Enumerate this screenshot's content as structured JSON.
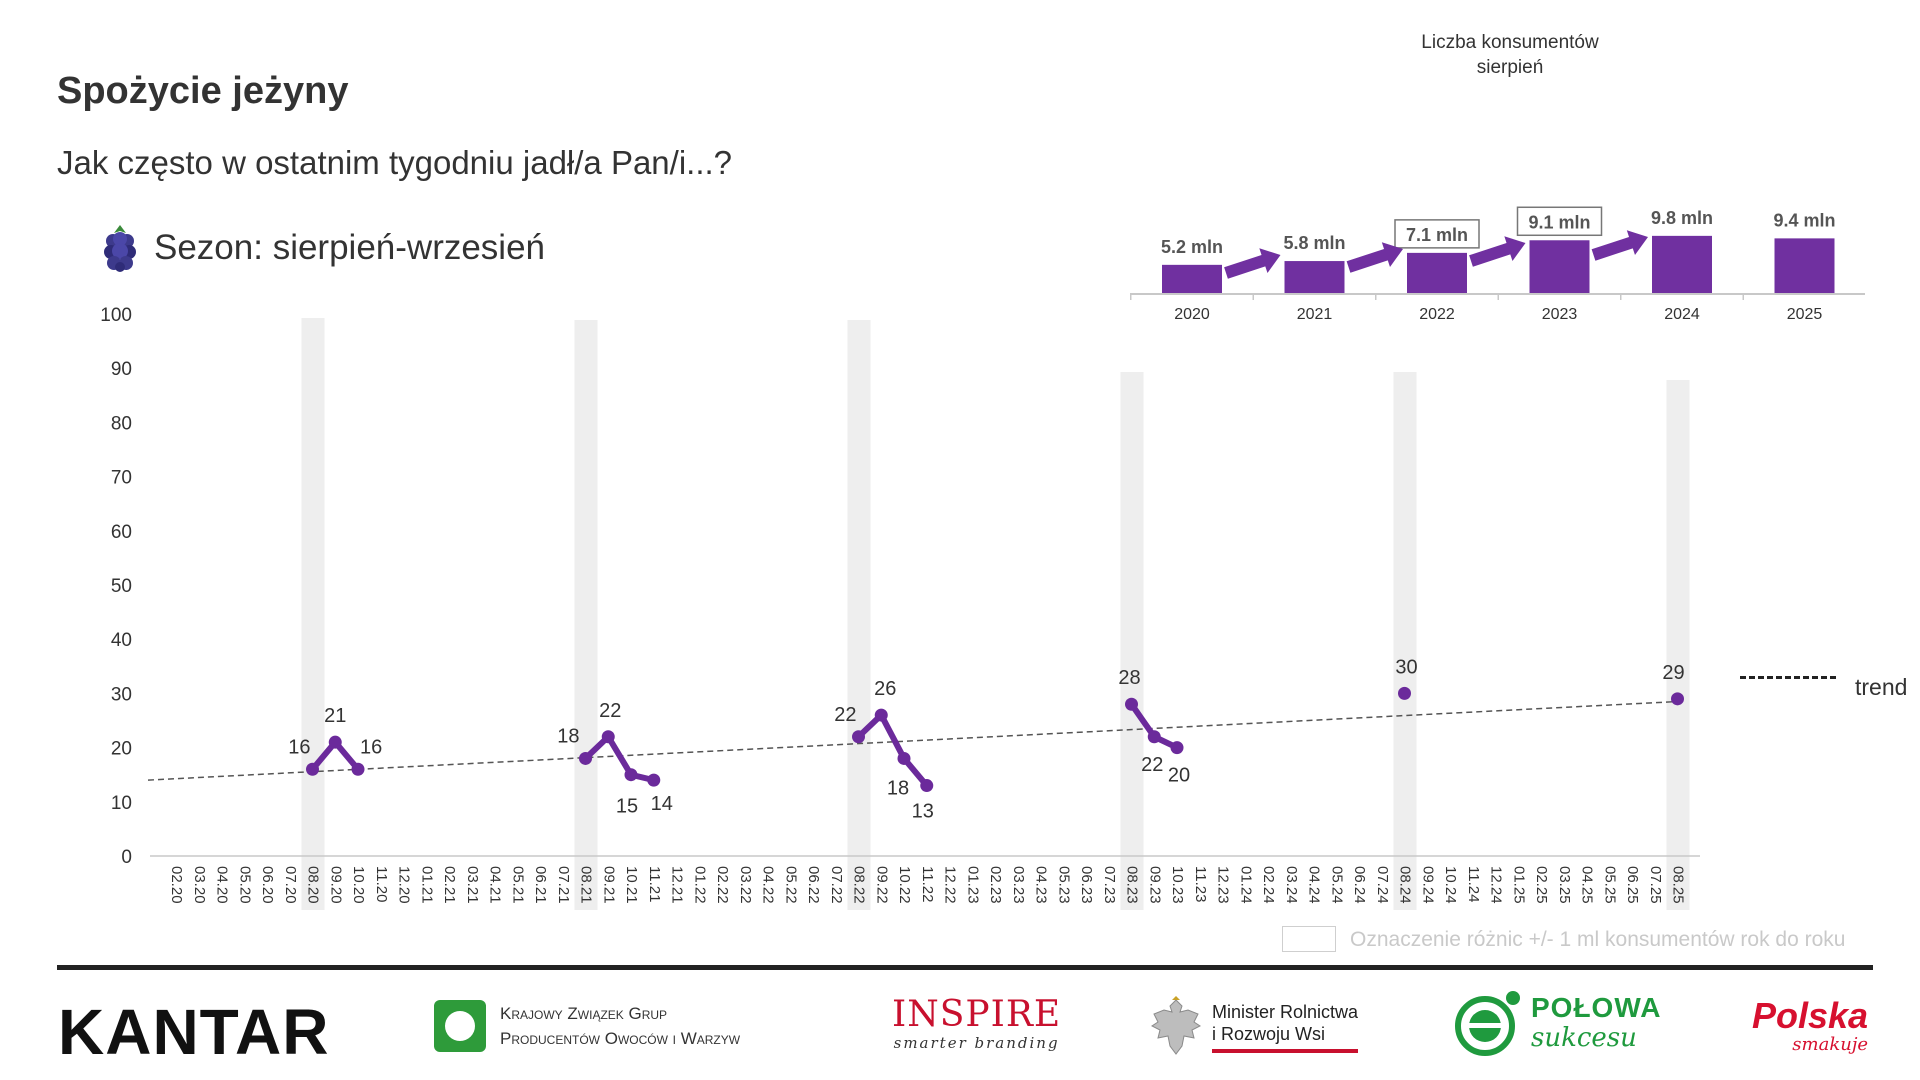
{
  "header": {
    "title": "Spożycie jeżyny",
    "subtitle": "Jak często w ostatnim tygodniu jadł/a Pan/i...?",
    "season": "Sezon: sierpień-wrzesień",
    "season_icon": "blackberry-icon"
  },
  "consumers": {
    "title_line1": "Liczba konsumentów",
    "title_line2": "sierpień"
  },
  "chart_data": [
    {
      "type": "line",
      "y_axis": {
        "min": 0,
        "max": 100,
        "ticks": [
          "0",
          "10",
          "20",
          "30",
          "40",
          "50",
          "60",
          "70",
          "80",
          "90",
          "100"
        ]
      },
      "x_axis": {
        "categories": [
          "02.20",
          "03.20",
          "04.20",
          "05.20",
          "06.20",
          "07.20",
          "08.20",
          "09.20",
          "10.20",
          "11.20",
          "12.20",
          "01.21",
          "02.21",
          "03.21",
          "04.21",
          "05.21",
          "06.21",
          "07.21",
          "08.21",
          "09.21",
          "10.21",
          "11.21",
          "12.21",
          "01.22",
          "02.22",
          "03.22",
          "04.22",
          "05.22",
          "06.22",
          "07.22",
          "08.22",
          "09.22",
          "10.22",
          "11.22",
          "12.22",
          "01.23",
          "02.23",
          "03.23",
          "04.23",
          "05.23",
          "06.23",
          "07.23",
          "08.23",
          "09.23",
          "10.23",
          "11.23",
          "12.23",
          "01.24",
          "02.24",
          "03.24",
          "04.24",
          "05.24",
          "06.24",
          "07.24",
          "08.24",
          "09.24",
          "10.24",
          "11.24",
          "12.24",
          "01.25",
          "02.25",
          "03.25",
          "04.25",
          "05.25",
          "06.25",
          "07.25",
          "08.25"
        ]
      },
      "highlighted_months": [
        "08.20",
        "08.21",
        "08.22",
        "08.23",
        "08.24",
        "08.25"
      ],
      "series": [
        {
          "values": [
            {
              "x": "08.20",
              "y": 16
            },
            {
              "x": "09.20",
              "y": 21
            },
            {
              "x": "10.20",
              "y": 16
            }
          ]
        },
        {
          "values": [
            {
              "x": "08.21",
              "y": 18
            },
            {
              "x": "09.21",
              "y": 22
            },
            {
              "x": "10.21",
              "y": 15
            },
            {
              "x": "11.21",
              "y": 14
            }
          ]
        },
        {
          "values": [
            {
              "x": "08.22",
              "y": 22
            },
            {
              "x": "09.22",
              "y": 26
            },
            {
              "x": "10.22",
              "y": 18
            },
            {
              "x": "11.22",
              "y": 13
            }
          ]
        },
        {
          "values": [
            {
              "x": "08.23",
              "y": 28
            },
            {
              "x": "09.23",
              "y": 22
            },
            {
              "x": "10.23",
              "y": 20
            }
          ]
        },
        {
          "values": [
            {
              "x": "08.24",
              "y": 30
            }
          ]
        },
        {
          "values": [
            {
              "x": "08.25",
              "y": 29
            }
          ]
        }
      ],
      "trend": {
        "label": "trend",
        "style": "dashed",
        "from": {
          "x": "02.20",
          "y": 14
        },
        "to": {
          "x": "08.25",
          "y": 28.5
        }
      },
      "legend": {
        "trend_label": "trend",
        "highlight_label": "Oznaczenie różnic +/- 1 ml konsumentów rok do roku"
      },
      "colors": {
        "series": "#6b2a9b",
        "highlight": "#eeeeee",
        "trend": "#555555"
      }
    },
    {
      "type": "bar",
      "categories": [
        "2020",
        "2021",
        "2022",
        "2023",
        "2024",
        "2025"
      ],
      "values": [
        5.2,
        5.8,
        7.1,
        9.1,
        9.8,
        9.4
      ],
      "labels": [
        "5.2 mln",
        "5.8 mln",
        "7.1 mln",
        "9.1 mln",
        "9.8 mln",
        "9.4 mln"
      ],
      "boxed_labels": [
        "2022",
        "2023"
      ],
      "arrows_between": [
        [
          "2020",
          "2021"
        ],
        [
          "2021",
          "2022"
        ],
        [
          "2022",
          "2023"
        ],
        [
          "2023",
          "2024"
        ]
      ],
      "colors": {
        "bar": "#7030a0",
        "arrow": "#7030a0"
      }
    }
  ],
  "footer": {
    "logos": {
      "kantar": "KANTAR",
      "kzgp_line1": "Krajowy Związek Grup",
      "kzgp_line2": "Producentów Owoców i Warzyw",
      "inspire": "INSPIRE",
      "inspire_sub": "smarter branding",
      "minister_line1": "Minister Rolnictwa",
      "minister_line2": "i Rozwoju Wsi",
      "polowa_line1": "POŁOWA",
      "polowa_line2": "sukcesu",
      "polska_line1": "Polska",
      "polska_line2": "smakuje"
    }
  }
}
